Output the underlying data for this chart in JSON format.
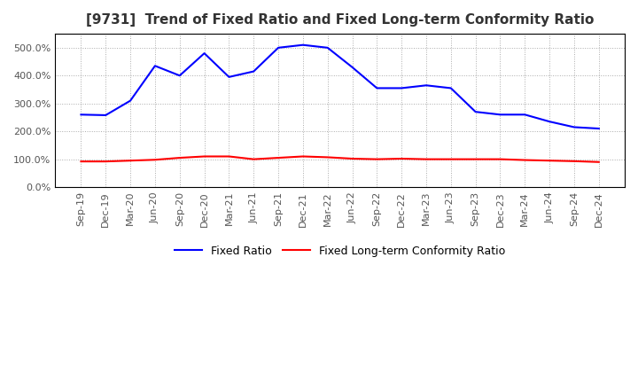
{
  "title": "[9731]  Trend of Fixed Ratio and Fixed Long-term Conformity Ratio",
  "x_labels": [
    "Sep-19",
    "Dec-19",
    "Mar-20",
    "Jun-20",
    "Sep-20",
    "Dec-20",
    "Mar-21",
    "Jun-21",
    "Sep-21",
    "Dec-21",
    "Mar-22",
    "Jun-22",
    "Sep-22",
    "Dec-22",
    "Mar-23",
    "Jun-23",
    "Sep-23",
    "Dec-23",
    "Mar-24",
    "Jun-24",
    "Sep-24",
    "Dec-24"
  ],
  "fixed_ratio": [
    260,
    258,
    310,
    435,
    400,
    480,
    395,
    415,
    500,
    510,
    500,
    430,
    355,
    355,
    365,
    355,
    270,
    260,
    260,
    235,
    215,
    210
  ],
  "fixed_lt_ratio": [
    92,
    92,
    95,
    98,
    105,
    110,
    110,
    100,
    105,
    110,
    107,
    102,
    100,
    102,
    100,
    100,
    100,
    100,
    97,
    95,
    93,
    90
  ],
  "fixed_ratio_color": "#0000FF",
  "fixed_lt_ratio_color": "#FF0000",
  "ylim": [
    0,
    550
  ],
  "yticks": [
    0,
    100,
    200,
    300,
    400,
    500
  ],
  "ytick_labels": [
    "0.0%",
    "100.0%",
    "200.0%",
    "300.0%",
    "400.0%",
    "500.0%"
  ],
  "grid_color": "#AAAAAA",
  "background_color": "#FFFFFF",
  "line_width": 1.5,
  "title_fontsize": 11,
  "tick_fontsize": 8
}
